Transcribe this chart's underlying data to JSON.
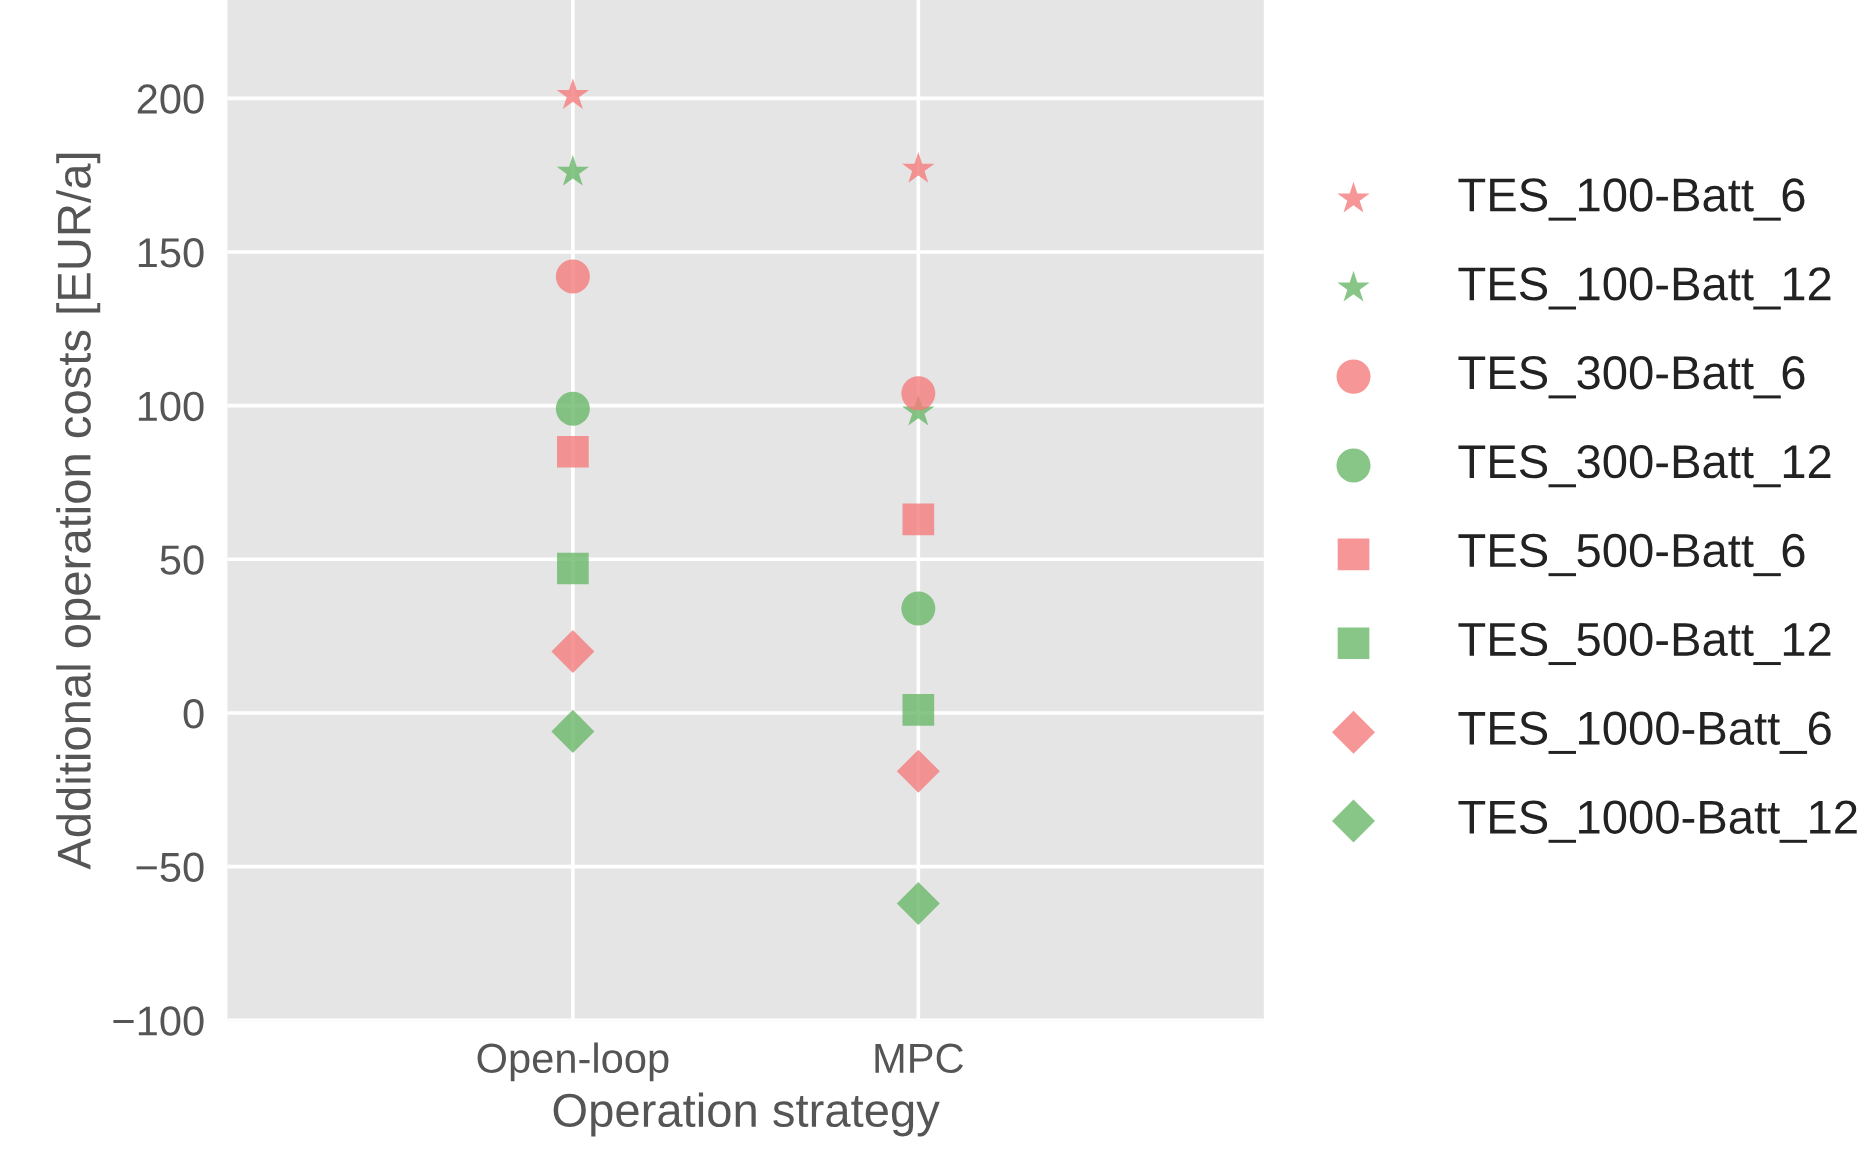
{
  "chart_data": {
    "type": "scatter",
    "xlabel": "Operation strategy",
    "ylabel": "Additional operation costs [EUR/a]",
    "categories": [
      "Open-loop",
      "MPC"
    ],
    "ylim": [
      -100,
      232
    ],
    "yticks": [
      -100,
      -50,
      0,
      50,
      100,
      150,
      200
    ],
    "grid": true,
    "legend": "right",
    "series": [
      {
        "name": "TES_100-Batt_6",
        "color": "#f47c7c",
        "marker": "star",
        "values": [
          201,
          177
        ]
      },
      {
        "name": "TES_100-Batt_12",
        "color": "#6ab86a",
        "marker": "star",
        "values": [
          176,
          98
        ]
      },
      {
        "name": "TES_300-Batt_6",
        "color": "#f47c7c",
        "marker": "circle",
        "values": [
          142,
          104
        ]
      },
      {
        "name": "TES_300-Batt_12",
        "color": "#6ab86a",
        "marker": "circle",
        "values": [
          99,
          34
        ]
      },
      {
        "name": "TES_500-Batt_6",
        "color": "#f47c7c",
        "marker": "square",
        "values": [
          85,
          63
        ]
      },
      {
        "name": "TES_500-Batt_12",
        "color": "#6ab86a",
        "marker": "square",
        "values": [
          47,
          1
        ]
      },
      {
        "name": "TES_1000-Batt_6",
        "color": "#f47c7c",
        "marker": "diamond",
        "values": [
          20,
          -19
        ]
      },
      {
        "name": "TES_1000-Batt_12",
        "color": "#6ab86a",
        "marker": "diamond",
        "values": [
          -6,
          -62
        ]
      }
    ]
  }
}
